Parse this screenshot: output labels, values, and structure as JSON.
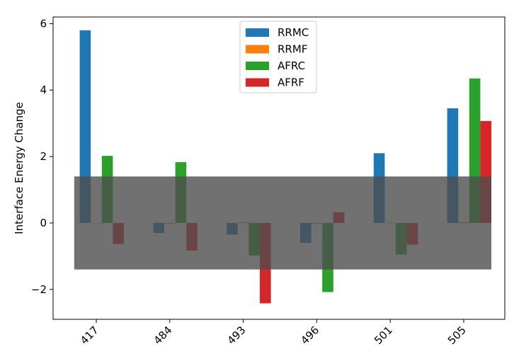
{
  "chart_data": {
    "type": "bar",
    "title": "",
    "xlabel": "",
    "ylabel": "Interface Energy Change",
    "categories": [
      "417",
      "484",
      "493",
      "496",
      "501",
      "505"
    ],
    "ylim": [
      -2.9,
      6.2
    ],
    "yticks": [
      -2,
      0,
      2,
      4,
      6
    ],
    "ytick_labels": [
      "−2",
      "0",
      "2",
      "4",
      "6"
    ],
    "grid": false,
    "legend_position": "top-center",
    "series": [
      {
        "name": "RRMC",
        "color": "#1f77b4",
        "values": [
          5.8,
          -0.3,
          -0.35,
          -0.6,
          2.1,
          3.45
        ]
      },
      {
        "name": "RRMF",
        "color": "#ff7f0e",
        "values": [
          0.0,
          -0.02,
          0.02,
          -0.02,
          0.0,
          0.03
        ]
      },
      {
        "name": "AFRC",
        "color": "#2ca02c",
        "values": [
          2.02,
          1.83,
          -0.98,
          -2.08,
          -0.95,
          4.35
        ]
      },
      {
        "name": "AFRF",
        "color": "#d62728",
        "values": [
          -0.63,
          -0.83,
          -2.42,
          0.32,
          -0.65,
          3.07
        ]
      }
    ],
    "band": {
      "y_range": [
        -1.4,
        1.4
      ],
      "color": "#4d4d4d",
      "opacity": 0.8
    }
  }
}
